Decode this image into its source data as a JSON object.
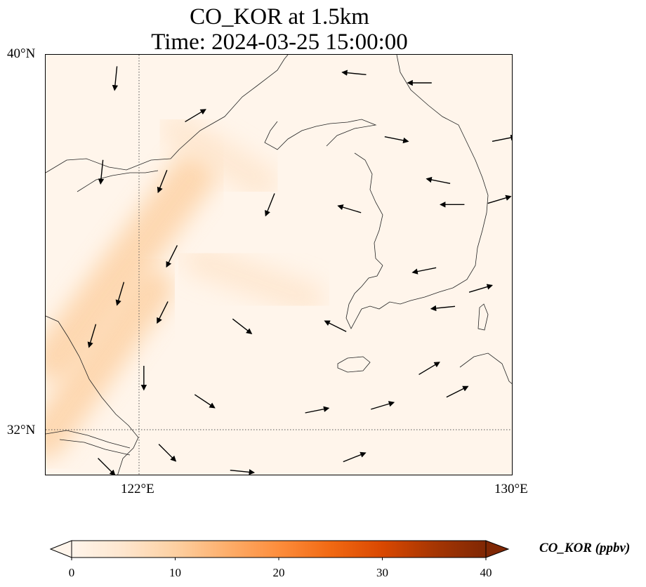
{
  "title": {
    "line1": "CO_KOR at 1.5km",
    "line2": "Time: 2024-03-25 15:00:00"
  },
  "axes": {
    "lat_ticks": [
      {
        "value": 40,
        "label": "40°N"
      },
      {
        "value": 32,
        "label": "32°N"
      }
    ],
    "lon_ticks": [
      {
        "value": 122,
        "label": "122°E"
      },
      {
        "value": 130,
        "label": "130°E"
      }
    ],
    "lon_range": [
      120,
      130
    ],
    "lat_range": [
      31,
      40
    ],
    "gridlines": {
      "lon": [
        122
      ],
      "lat": [
        32
      ],
      "style": "dotted"
    }
  },
  "colorbar": {
    "label": "CO_KOR (ppbv)",
    "ticks": [
      "0",
      "10",
      "20",
      "30",
      "40"
    ],
    "range": [
      0,
      40
    ],
    "extend": "both",
    "colormap": [
      "#fff5eb",
      "#fee6ce",
      "#fdd0a2",
      "#fdae6b",
      "#fd8d3c",
      "#f16913",
      "#d94801",
      "#a63603",
      "#7f2704"
    ]
  },
  "map": {
    "field_name": "CO_KOR",
    "level": "1.5km",
    "plumes": [
      {
        "from": [
          120.2,
          33.5
        ],
        "to": [
          123.2,
          37.5
        ],
        "value": 12
      },
      {
        "from": [
          120.0,
          31.8
        ],
        "to": [
          122.3,
          35.0
        ],
        "value": 9
      },
      {
        "from": [
          123.3,
          35.6
        ],
        "to": [
          125.6,
          34.8
        ],
        "value": 4
      },
      {
        "from": [
          122.8,
          38.4
        ],
        "to": [
          124.6,
          37.3
        ],
        "value": 5
      }
    ],
    "wind_vectors": [
      {
        "lon": 121.5,
        "lat": 39.5,
        "u": -0.1,
        "v": -1.0
      },
      {
        "lon": 123.2,
        "lat": 38.7,
        "u": 1.0,
        "v": 0.6
      },
      {
        "lon": 126.6,
        "lat": 39.6,
        "u": -1.0,
        "v": 0.1
      },
      {
        "lon": 128.0,
        "lat": 39.4,
        "u": -1.0,
        "v": 0.0
      },
      {
        "lon": 129.8,
        "lat": 38.2,
        "u": 1.0,
        "v": 0.2
      },
      {
        "lon": 127.5,
        "lat": 38.2,
        "u": 1.0,
        "v": -0.2
      },
      {
        "lon": 128.4,
        "lat": 37.3,
        "u": -1.0,
        "v": 0.2
      },
      {
        "lon": 126.5,
        "lat": 36.7,
        "u": -1.0,
        "v": 0.3
      },
      {
        "lon": 128.7,
        "lat": 36.8,
        "u": -1.0,
        "v": 0.0
      },
      {
        "lon": 129.7,
        "lat": 36.9,
        "u": 1.0,
        "v": 0.3
      },
      {
        "lon": 128.1,
        "lat": 35.4,
        "u": -1.0,
        "v": -0.2
      },
      {
        "lon": 129.3,
        "lat": 35.0,
        "u": 1.0,
        "v": 0.3
      },
      {
        "lon": 128.5,
        "lat": 34.6,
        "u": -1.0,
        "v": -0.1
      },
      {
        "lon": 126.2,
        "lat": 34.2,
        "u": -1.0,
        "v": 0.5
      },
      {
        "lon": 121.2,
        "lat": 37.5,
        "u": -0.1,
        "v": -1.0
      },
      {
        "lon": 122.5,
        "lat": 37.3,
        "u": -0.4,
        "v": -1.0
      },
      {
        "lon": 124.8,
        "lat": 36.8,
        "u": -0.4,
        "v": -1.0
      },
      {
        "lon": 122.7,
        "lat": 35.7,
        "u": -0.5,
        "v": -1.0
      },
      {
        "lon": 121.6,
        "lat": 34.9,
        "u": -0.3,
        "v": -1.0
      },
      {
        "lon": 121.0,
        "lat": 34.0,
        "u": -0.3,
        "v": -1.0
      },
      {
        "lon": 122.1,
        "lat": 33.1,
        "u": 0.0,
        "v": -1.0
      },
      {
        "lon": 122.5,
        "lat": 34.5,
        "u": -0.5,
        "v": -1.0
      },
      {
        "lon": 124.2,
        "lat": 34.2,
        "u": 0.9,
        "v": -0.7
      },
      {
        "lon": 123.4,
        "lat": 32.6,
        "u": 0.9,
        "v": -0.6
      },
      {
        "lon": 125.8,
        "lat": 32.4,
        "u": 1.0,
        "v": 0.2
      },
      {
        "lon": 127.2,
        "lat": 32.5,
        "u": 1.0,
        "v": 0.3
      },
      {
        "lon": 124.2,
        "lat": 31.1,
        "u": 1.0,
        "v": -0.1
      },
      {
        "lon": 126.6,
        "lat": 31.4,
        "u": 1.0,
        "v": 0.4
      },
      {
        "lon": 128.2,
        "lat": 33.3,
        "u": 1.0,
        "v": 0.6
      },
      {
        "lon": 128.8,
        "lat": 32.8,
        "u": 1.0,
        "v": 0.5
      },
      {
        "lon": 121.3,
        "lat": 31.2,
        "u": 0.7,
        "v": -0.7
      },
      {
        "lon": 122.6,
        "lat": 31.5,
        "u": 0.7,
        "v": -0.7
      }
    ]
  }
}
